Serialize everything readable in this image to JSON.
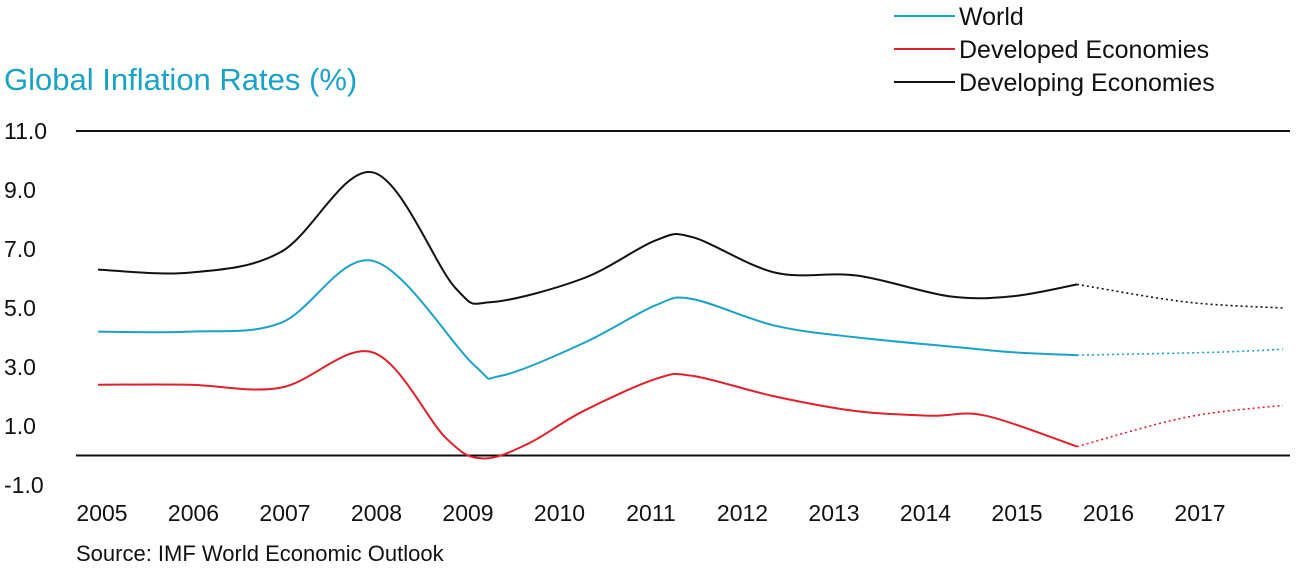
{
  "chart_data": {
    "type": "line",
    "title": "Global Inflation Rates  (%)",
    "source": "Source: IMF World Economic Outlook",
    "ylim": [
      -1.0,
      11.0
    ],
    "yticks": [
      11.0,
      9.0,
      7.0,
      5.0,
      3.0,
      1.0,
      -1.0
    ],
    "ytick_labels": [
      "11.0",
      "9.0",
      "7.0",
      "5.0",
      "3.0",
      "1.0",
      "-1.0"
    ],
    "xlim": [
      2005,
      2018
    ],
    "xticks": [
      "2005",
      "2006",
      "2007",
      "2008",
      "2009",
      "2010",
      "2011",
      "2012",
      "2013",
      "2014",
      "2015",
      "2016",
      "2017"
    ],
    "horizontal_lines": [
      11.0,
      0.0
    ],
    "legend_position": "top-right",
    "actual_end_x": 2015.7,
    "series": [
      {
        "name": "World",
        "color": "#1aa3c9",
        "x": [
          2005.0,
          2006.0,
          2007.0,
          2008.0,
          2009.1,
          2009.4,
          2010.3,
          2011.1,
          2011.5,
          2012.4,
          2013.3,
          2014.3,
          2015.0,
          2015.7,
          2017.2,
          2017.95
        ],
        "y": [
          4.2,
          4.2,
          4.5,
          6.6,
          3.1,
          2.7,
          3.8,
          5.1,
          5.3,
          4.4,
          4.0,
          3.7,
          3.5,
          3.4,
          3.5,
          3.6
        ]
      },
      {
        "name": "Developed Economies",
        "color": "#e0202b",
        "x": [
          2005.0,
          2006.0,
          2007.0,
          2008.0,
          2008.8,
          2009.2,
          2009.7,
          2010.3,
          2011.1,
          2011.5,
          2012.4,
          2013.3,
          2014.1,
          2014.7,
          2015.7,
          2016.9,
          2017.95
        ],
        "y": [
          2.4,
          2.4,
          2.3,
          3.5,
          0.6,
          -0.1,
          0.4,
          1.5,
          2.6,
          2.7,
          2.0,
          1.5,
          1.35,
          1.35,
          0.3,
          1.3,
          1.7
        ]
      },
      {
        "name": "Developing Economies",
        "color": "#111111",
        "x": [
          2005.0,
          2006.0,
          2007.0,
          2008.0,
          2008.9,
          2009.3,
          2010.3,
          2011.1,
          2011.5,
          2012.4,
          2013.3,
          2014.3,
          2015.0,
          2015.7,
          2016.9,
          2017.95
        ],
        "y": [
          6.3,
          6.2,
          6.9,
          9.6,
          5.7,
          5.2,
          6.0,
          7.3,
          7.4,
          6.2,
          6.1,
          5.4,
          5.4,
          5.8,
          5.2,
          5.0
        ]
      }
    ]
  }
}
